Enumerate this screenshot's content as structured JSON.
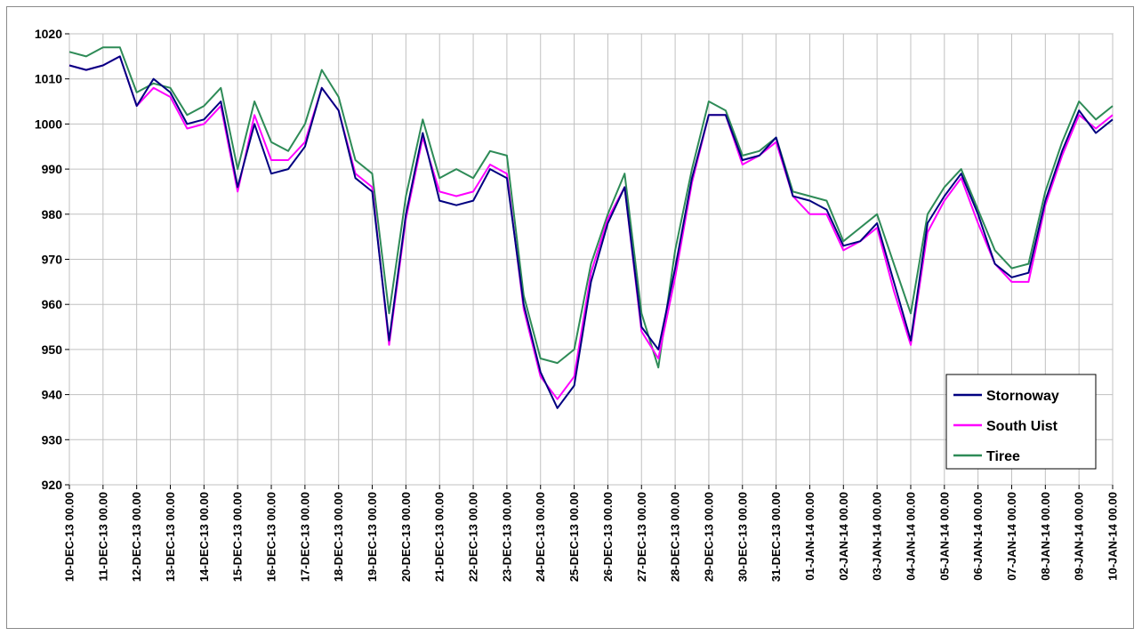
{
  "chart_data": {
    "type": "line",
    "title": "",
    "xlabel": "",
    "ylabel": "",
    "ylim": [
      920,
      1020
    ],
    "y_ticks": [
      "920",
      "930",
      "940",
      "950",
      "960",
      "970",
      "980",
      "990",
      "1000",
      "1010",
      "1020"
    ],
    "grid": true,
    "legend_position": "bottom-right",
    "x_tick_labels": [
      "10-DEC-13 00.00",
      "11-DEC-13 00.00",
      "12-DEC-13 00.00",
      "13-DEC-13 00.00",
      "14-DEC-13 00.00",
      "15-DEC-13 00.00",
      "16-DEC-13 00.00",
      "17-DEC-13 00.00",
      "18-DEC-13 00.00",
      "19-DEC-13 00.00",
      "20-DEC-13 00.00",
      "21-DEC-13 00.00",
      "22-DEC-13 00.00",
      "23-DEC-13 00.00",
      "24-DEC-13 00.00",
      "25-DEC-13 00.00",
      "26-DEC-13 00.00",
      "27-DEC-13 00.00",
      "28-DEC-13 00.00",
      "29-DEC-13 00.00",
      "30-DEC-13 00.00",
      "31-DEC-13 00.00",
      "01-JAN-14 00.00",
      "02-JAN-14 00.00",
      "03-JAN-14 00.00",
      "04-JAN-14 00.00",
      "05-JAN-14 00.00",
      "06-JAN-14 00.00",
      "07-JAN-14 00.00",
      "08-JAN-14 00.00",
      "09-JAN-14 00.00",
      "10-JAN-14 00.00"
    ],
    "series": [
      {
        "name": "Stornoway",
        "color": "#000080",
        "x": [
          "10-DEC-13 00.00",
          "10-DEC-13 12.00",
          "11-DEC-13 00.00",
          "11-DEC-13 12.00",
          "12-DEC-13 00.00",
          "12-DEC-13 12.00",
          "13-DEC-13 00.00",
          "13-DEC-13 12.00",
          "14-DEC-13 00.00",
          "14-DEC-13 12.00",
          "15-DEC-13 00.00",
          "15-DEC-13 12.00",
          "16-DEC-13 00.00",
          "16-DEC-13 12.00",
          "17-DEC-13 00.00",
          "17-DEC-13 12.00",
          "18-DEC-13 00.00",
          "18-DEC-13 12.00",
          "19-DEC-13 00.00",
          "19-DEC-13 12.00",
          "20-DEC-13 00.00",
          "20-DEC-13 12.00",
          "21-DEC-13 00.00",
          "21-DEC-13 12.00",
          "22-DEC-13 00.00",
          "22-DEC-13 12.00",
          "23-DEC-13 00.00",
          "23-DEC-13 12.00",
          "24-DEC-13 00.00",
          "24-DEC-13 12.00",
          "25-DEC-13 00.00",
          "25-DEC-13 12.00",
          "26-DEC-13 00.00",
          "26-DEC-13 12.00",
          "27-DEC-13 00.00",
          "27-DEC-13 12.00",
          "28-DEC-13 00.00",
          "28-DEC-13 12.00",
          "29-DEC-13 00.00",
          "29-DEC-13 12.00",
          "30-DEC-13 00.00",
          "30-DEC-13 12.00",
          "31-DEC-13 00.00",
          "31-DEC-13 12.00",
          "01-JAN-14 00.00",
          "01-JAN-14 12.00",
          "02-JAN-14 00.00",
          "02-JAN-14 12.00",
          "03-JAN-14 00.00",
          "03-JAN-14 12.00",
          "04-JAN-14 00.00",
          "04-JAN-14 12.00",
          "05-JAN-14 00.00",
          "05-JAN-14 12.00",
          "06-JAN-14 00.00",
          "06-JAN-14 12.00",
          "07-JAN-14 00.00",
          "07-JAN-14 12.00",
          "08-JAN-14 00.00",
          "08-JAN-14 12.00",
          "09-JAN-14 00.00",
          "09-JAN-14 12.00",
          "10-JAN-14 00.00"
        ],
        "values": [
          1013,
          1012,
          1013,
          1015,
          1004,
          1010,
          1007,
          1000,
          1001,
          1005,
          986,
          1000,
          989,
          990,
          995,
          1008,
          1003,
          988,
          985,
          952,
          980,
          998,
          983,
          982,
          983,
          990,
          988,
          960,
          945,
          937,
          942,
          965,
          978,
          986,
          955,
          950,
          968,
          988,
          1002,
          1002,
          992,
          993,
          997,
          984,
          983,
          981,
          973,
          974,
          978,
          965,
          952,
          978,
          984,
          989,
          980,
          969,
          966,
          967,
          983,
          994,
          1003,
          998,
          1001
        ]
      },
      {
        "name": "South Uist",
        "color": "#FF00FF",
        "x": [
          "10-DEC-13 00.00",
          "10-DEC-13 12.00",
          "11-DEC-13 00.00",
          "11-DEC-13 12.00",
          "12-DEC-13 00.00",
          "12-DEC-13 12.00",
          "13-DEC-13 00.00",
          "13-DEC-13 12.00",
          "14-DEC-13 00.00",
          "14-DEC-13 12.00",
          "15-DEC-13 00.00",
          "15-DEC-13 12.00",
          "16-DEC-13 00.00",
          "16-DEC-13 12.00",
          "17-DEC-13 00.00",
          "17-DEC-13 12.00",
          "18-DEC-13 00.00",
          "18-DEC-13 12.00",
          "19-DEC-13 00.00",
          "19-DEC-13 12.00",
          "20-DEC-13 00.00",
          "20-DEC-13 12.00",
          "21-DEC-13 00.00",
          "21-DEC-13 12.00",
          "22-DEC-13 00.00",
          "22-DEC-13 12.00",
          "23-DEC-13 00.00",
          "23-DEC-13 12.00",
          "24-DEC-13 00.00",
          "24-DEC-13 12.00",
          "25-DEC-13 00.00",
          "25-DEC-13 12.00",
          "26-DEC-13 00.00",
          "26-DEC-13 12.00",
          "27-DEC-13 00.00",
          "27-DEC-13 12.00",
          "28-DEC-13 00.00",
          "28-DEC-13 12.00",
          "29-DEC-13 00.00",
          "29-DEC-13 12.00",
          "30-DEC-13 00.00",
          "30-DEC-13 12.00",
          "31-DEC-13 00.00",
          "31-DEC-13 12.00",
          "01-JAN-14 00.00",
          "01-JAN-14 12.00",
          "02-JAN-14 00.00",
          "02-JAN-14 12.00",
          "03-JAN-14 00.00",
          "03-JAN-14 12.00",
          "04-JAN-14 00.00",
          "04-JAN-14 12.00",
          "05-JAN-14 00.00",
          "05-JAN-14 12.00",
          "06-JAN-14 00.00",
          "06-JAN-14 12.00",
          "07-JAN-14 00.00",
          "07-JAN-14 12.00",
          "08-JAN-14 00.00",
          "08-JAN-14 12.00",
          "09-JAN-14 00.00",
          "09-JAN-14 12.00",
          "10-JAN-14 00.00"
        ],
        "values": [
          1013,
          1012,
          1013,
          1015,
          1004,
          1008,
          1006,
          999,
          1000,
          1004,
          985,
          1002,
          992,
          992,
          996,
          1008,
          1003,
          989,
          986,
          951,
          979,
          997,
          985,
          984,
          985,
          991,
          989,
          959,
          944,
          939,
          944,
          967,
          979,
          986,
          954,
          948,
          966,
          987,
          1002,
          1002,
          991,
          993,
          996,
          984,
          980,
          980,
          972,
          974,
          977,
          963,
          951,
          976,
          983,
          988,
          978,
          969,
          965,
          965,
          982,
          993,
          1002,
          999,
          1002
        ]
      },
      {
        "name": "Tiree",
        "color": "#2E8B57",
        "x": [
          "10-DEC-13 00.00",
          "10-DEC-13 12.00",
          "11-DEC-13 00.00",
          "11-DEC-13 12.00",
          "12-DEC-13 00.00",
          "12-DEC-13 12.00",
          "13-DEC-13 00.00",
          "13-DEC-13 12.00",
          "14-DEC-13 00.00",
          "14-DEC-13 12.00",
          "15-DEC-13 00.00",
          "15-DEC-13 12.00",
          "16-DEC-13 00.00",
          "16-DEC-13 12.00",
          "17-DEC-13 00.00",
          "17-DEC-13 12.00",
          "18-DEC-13 00.00",
          "18-DEC-13 12.00",
          "19-DEC-13 00.00",
          "19-DEC-13 12.00",
          "20-DEC-13 00.00",
          "20-DEC-13 12.00",
          "21-DEC-13 00.00",
          "21-DEC-13 12.00",
          "22-DEC-13 00.00",
          "22-DEC-13 12.00",
          "23-DEC-13 00.00",
          "23-DEC-13 12.00",
          "24-DEC-13 00.00",
          "24-DEC-13 12.00",
          "25-DEC-13 00.00",
          "25-DEC-13 12.00",
          "26-DEC-13 00.00",
          "26-DEC-13 12.00",
          "27-DEC-13 00.00",
          "27-DEC-13 12.00",
          "28-DEC-13 00.00",
          "28-DEC-13 12.00",
          "29-DEC-13 00.00",
          "29-DEC-13 12.00",
          "30-DEC-13 00.00",
          "30-DEC-13 12.00",
          "31-DEC-13 00.00",
          "31-DEC-13 12.00",
          "01-JAN-14 00.00",
          "01-JAN-14 12.00",
          "02-JAN-14 00.00",
          "02-JAN-14 12.00",
          "03-JAN-14 00.00",
          "03-JAN-14 12.00",
          "04-JAN-14 00.00",
          "04-JAN-14 12.00",
          "05-JAN-14 00.00",
          "05-JAN-14 12.00",
          "06-JAN-14 00.00",
          "06-JAN-14 12.00",
          "07-JAN-14 00.00",
          "07-JAN-14 12.00",
          "08-JAN-14 00.00",
          "08-JAN-14 12.00",
          "09-JAN-14 00.00",
          "09-JAN-14 12.00",
          "10-JAN-14 00.00"
        ],
        "values": [
          1016,
          1015,
          1017,
          1017,
          1007,
          1009,
          1008,
          1002,
          1004,
          1008,
          990,
          1005,
          996,
          994,
          1000,
          1012,
          1006,
          992,
          989,
          958,
          984,
          1001,
          988,
          990,
          988,
          994,
          993,
          962,
          948,
          947,
          950,
          969,
          980,
          989,
          958,
          946,
          972,
          990,
          1005,
          1003,
          993,
          994,
          997,
          985,
          984,
          983,
          974,
          977,
          980,
          969,
          958,
          980,
          986,
          990,
          981,
          972,
          968,
          969,
          985,
          996,
          1005,
          1001,
          1004
        ]
      }
    ]
  }
}
